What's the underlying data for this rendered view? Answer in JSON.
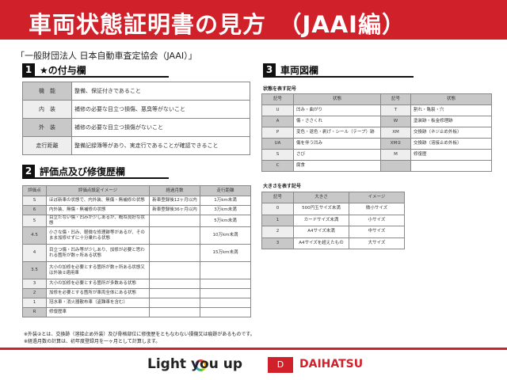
{
  "title": "車両状態証明書の見方　（JAAI編）",
  "organization": "「一般財団法人 日本自動車査定協会（JAAI）」",
  "section1": {
    "num": "1",
    "title": "★の付与欄",
    "rows": [
      {
        "k": "機　能",
        "v": "整備、保証付きであること"
      },
      {
        "k": "内　装",
        "v": "補修の必要な目立つ損傷、悪臭等がないこと"
      },
      {
        "k": "外　装",
        "v": "補修の必要な目立つ損傷がないこと"
      },
      {
        "k": "走行距離",
        "v": "整備記録簿等があり、実走行であることが確認できること"
      }
    ]
  },
  "section2": {
    "num": "2",
    "title": "評価点及び修復歴欄",
    "headers": [
      "評価点",
      "評価点設定イメージ",
      "経過月数",
      "走行距離"
    ],
    "rows": [
      [
        "S",
        "ほぼ新車の状態で、内外装、無傷・無補修の状態",
        "新車登録後12ヶ月以内",
        "1万km未満"
      ],
      [
        "6",
        "内外装、無傷・無補修の状態",
        "新車登録後36ヶ月以内",
        "3万km未満"
      ],
      [
        "5",
        "目立たない傷・凹みが少しあるが、概ね良好な状態",
        "",
        "5万km未満"
      ],
      [
        "4.5",
        "小さな傷・凹み、軽微な修理跡等があるが、そのまま加修せずに十分乗れる状態",
        "",
        "10万km未満"
      ],
      [
        "4",
        "目立つ傷・凹み等が少しあり、加修が必要と思われる箇所が数ヶ所ある状態",
        "",
        "15万km未満"
      ],
      [
        "3.5",
        "大小の加修を必要とする箇所が数ヶ所ある状態又は外装②適用車",
        "",
        ""
      ],
      [
        "3",
        "大小の加修を必要とする箇所が多数ある状態",
        "",
        ""
      ],
      [
        "2",
        "加修を必要とする箇所が車両全体にある状態",
        "",
        ""
      ],
      [
        "1",
        "冠水車・消火器散布車（盗難車を含む）",
        "",
        ""
      ],
      [
        "R",
        "修復歴車",
        "",
        ""
      ]
    ]
  },
  "notes": [
    "※外装②とは、交換跡（溶接止め外装）及び骨格部位に修復歴をともなわない損傷又は痕跡があるものです。",
    "※経過月数の計算は、初年度登録月を一ヶ月として計算します。"
  ],
  "section3": {
    "num": "3",
    "title": "車両図欄",
    "state_label": "状態を表す記号",
    "state_headers": [
      "記号",
      "状態",
      "記号",
      "状態"
    ],
    "state_rows": [
      [
        "U",
        "凹み・曲がり",
        "T",
        "割れ・亀裂・穴"
      ],
      [
        "A",
        "傷・ささくれ",
        "W",
        "塗装跡・板金修理跡"
      ],
      [
        "P",
        "変色・退色・剥げ・シール（テープ）跡",
        "XM",
        "交換跡（ネジ止め外板）"
      ],
      [
        "UA",
        "傷を伴う凹み",
        "XM②",
        "交換跡（溶接止め外板）"
      ],
      [
        "S",
        "さび",
        "M",
        "修復歴"
      ],
      [
        "C",
        "腐食",
        "",
        ""
      ]
    ],
    "size_label": "大きさを表す記号",
    "size_headers": [
      "記号",
      "大きさ",
      "イメージ"
    ],
    "size_rows": [
      [
        "0",
        "500円玉サイズ未満",
        "微小サイズ"
      ],
      [
        "1",
        "カードサイズ未満",
        "小サイズ"
      ],
      [
        "2",
        "A4サイズ未満",
        "中サイズ"
      ],
      [
        "3",
        "A4サイズを超えたもの",
        "大サイズ"
      ]
    ]
  },
  "footer": {
    "slogan": "Light you up",
    "brand": "DAIHATSU",
    "brand_color": "#d0202a"
  }
}
